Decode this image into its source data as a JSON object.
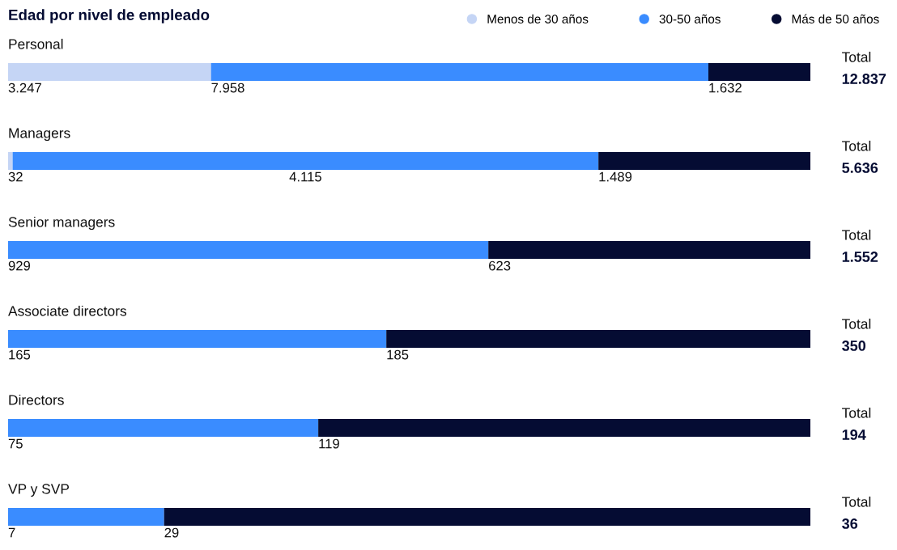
{
  "chart_data": [
    {
      "type": "bar",
      "orientation": "horizontal",
      "stacked": true,
      "title": "Edad por nivel de empleado",
      "legend": "top right",
      "xlim": [
        0,
        12837
      ],
      "categories": [
        "Personal"
      ],
      "series": [
        {
          "name": "Menos de 30 años",
          "color": "#c5d5f5",
          "values": [
            3247
          ],
          "value_labels": [
            "3.247"
          ]
        },
        {
          "name": "30-50 años",
          "color": "#3a8cff",
          "values": [
            7958
          ],
          "value_labels": [
            "7.958"
          ]
        },
        {
          "name": "Más de 50 años",
          "color": "#050c33",
          "values": [
            1632
          ],
          "value_labels": [
            "1.632"
          ]
        }
      ],
      "totals": [
        "12.837"
      ],
      "annotations": [
        "Total"
      ]
    },
    {
      "type": "bar",
      "orientation": "horizontal",
      "stacked": true,
      "xlim": [
        0,
        5636
      ],
      "categories": [
        "Managers"
      ],
      "series": [
        {
          "color": "#c5d5f5",
          "values": [
            32
          ],
          "value_labels": [
            "32"
          ]
        },
        {
          "color": "#3a8cff",
          "values": [
            4115
          ],
          "value_labels": [
            "4.115"
          ]
        },
        {
          "color": "#050c33",
          "values": [
            1489
          ],
          "value_labels": [
            "1.489"
          ]
        }
      ],
      "totals": [
        "5.636"
      ],
      "annotations": [
        "Total"
      ]
    },
    {
      "type": "bar",
      "orientation": "horizontal",
      "stacked": true,
      "xlim": [
        0,
        1552
      ],
      "categories": [
        "Senior managers"
      ],
      "series": [
        {
          "color": "#3a8cff",
          "values": [
            929
          ],
          "value_labels": [
            "929"
          ]
        },
        {
          "color": "#050c33",
          "values": [
            623
          ],
          "value_labels": [
            "623"
          ]
        }
      ],
      "totals": [
        "1.552"
      ],
      "annotations": [
        "Total"
      ]
    },
    {
      "type": "bar",
      "orientation": "horizontal",
      "stacked": true,
      "xlim": [
        0,
        350
      ],
      "categories": [
        "Associate directors"
      ],
      "series": [
        {
          "color": "#3a8cff",
          "values": [
            165
          ],
          "value_labels": [
            "165"
          ]
        },
        {
          "color": "#050c33",
          "values": [
            185
          ],
          "value_labels": [
            "185"
          ]
        }
      ],
      "totals": [
        "350"
      ],
      "annotations": [
        "Total"
      ]
    },
    {
      "type": "bar",
      "orientation": "horizontal",
      "stacked": true,
      "xlim": [
        0,
        194
      ],
      "categories": [
        "Directors"
      ],
      "series": [
        {
          "color": "#3a8cff",
          "values": [
            75
          ],
          "value_labels": [
            "75"
          ]
        },
        {
          "color": "#050c33",
          "values": [
            119
          ],
          "value_labels": [
            "119"
          ]
        }
      ],
      "totals": [
        "194"
      ],
      "annotations": [
        "Total"
      ]
    },
    {
      "type": "bar",
      "orientation": "horizontal",
      "stacked": true,
      "xlim": [
        0,
        36
      ],
      "categories": [
        "VP y SVP"
      ],
      "series": [
        {
          "color": "#3a8cff",
          "values": [
            7
          ],
          "value_labels": [
            "7"
          ]
        },
        {
          "color": "#050c33",
          "values": [
            29
          ],
          "value_labels": [
            "29"
          ]
        }
      ],
      "totals": [
        "36"
      ],
      "annotations": [
        "Total"
      ]
    }
  ]
}
